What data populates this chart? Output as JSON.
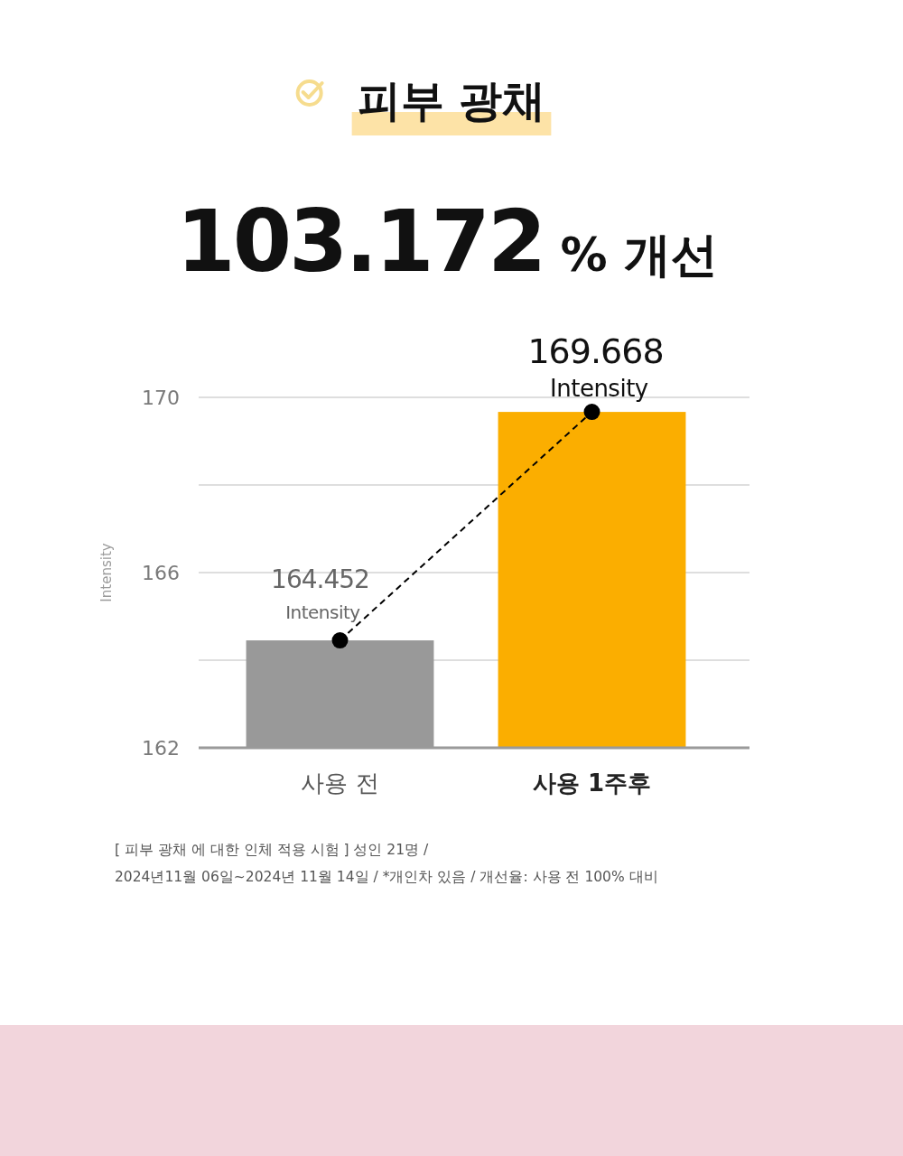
{
  "chart_data": {
    "type": "bar",
    "title": "피부 광채",
    "subtitle": "103.172 % 개선",
    "ylabel": "Intensity",
    "categories": [
      "사용 전",
      "사용 1주후"
    ],
    "series": [
      {
        "colors": [
          "#999999",
          "#fbae00"
        ],
        "values": [
          164.452,
          169.668
        ],
        "value_labels": [
          "164.452 Intensity",
          "169.668 Intensity"
        ]
      },
      {
        "type": "line",
        "color": "#000000",
        "marker": "circle",
        "line_style": "dashed",
        "values": [
          164.452,
          169.668
        ]
      }
    ],
    "ylim": [
      162,
      170
    ],
    "yticks": [
      162,
      {
        "value": 164,
        "label": null
      },
      166,
      {
        "value": 168,
        "label": null
      },
      170
    ],
    "grid": "y",
    "annotations": [
      "[ 피부 광채 에 대한 인체 적용 시험 ] 성인 21명 /",
      "2024년11월 06일~2024년 11월 14일 / *개인차 있음 / 개선율: 사용 전 100% 대비"
    ]
  }
}
